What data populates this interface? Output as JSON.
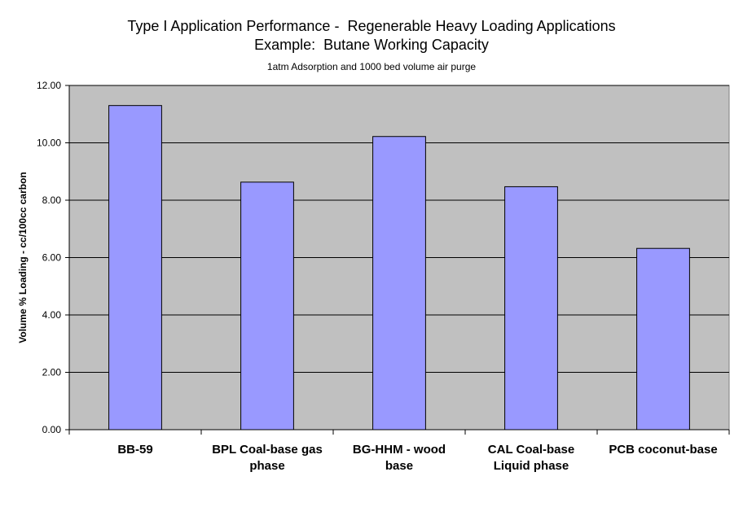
{
  "chart_data": {
    "type": "bar",
    "title": "Type I Application Performance -  Regenerable Heavy Loading Applications",
    "title_line2": "Example:  Butane Working Capacity",
    "subtitle": "1atm Adsorption and 1000 bed volume air purge",
    "xlabel": "",
    "ylabel": "Volume % Loading - cc/100cc carbon",
    "categories": [
      [
        "BB-59"
      ],
      [
        "BPL Coal-base gas",
        "phase"
      ],
      [
        "BG-HHM - wood",
        "base"
      ],
      [
        "CAL Coal-base",
        "Liquid phase"
      ],
      [
        "PCB coconut-base"
      ]
    ],
    "series": [
      {
        "values": [
          11.3,
          8.63,
          10.22,
          8.47,
          6.32
        ]
      }
    ],
    "ylim": [
      0,
      12
    ],
    "yticks": [
      "0.00",
      "2.00",
      "4.00",
      "6.00",
      "8.00",
      "10.00",
      "12.00"
    ],
    "grid": true,
    "legend": "none",
    "colors": {
      "plot_background": "#c0c0c0",
      "bar_fill": "#9999ff",
      "bar_stroke": "#000000",
      "gridline": "#000000"
    }
  }
}
